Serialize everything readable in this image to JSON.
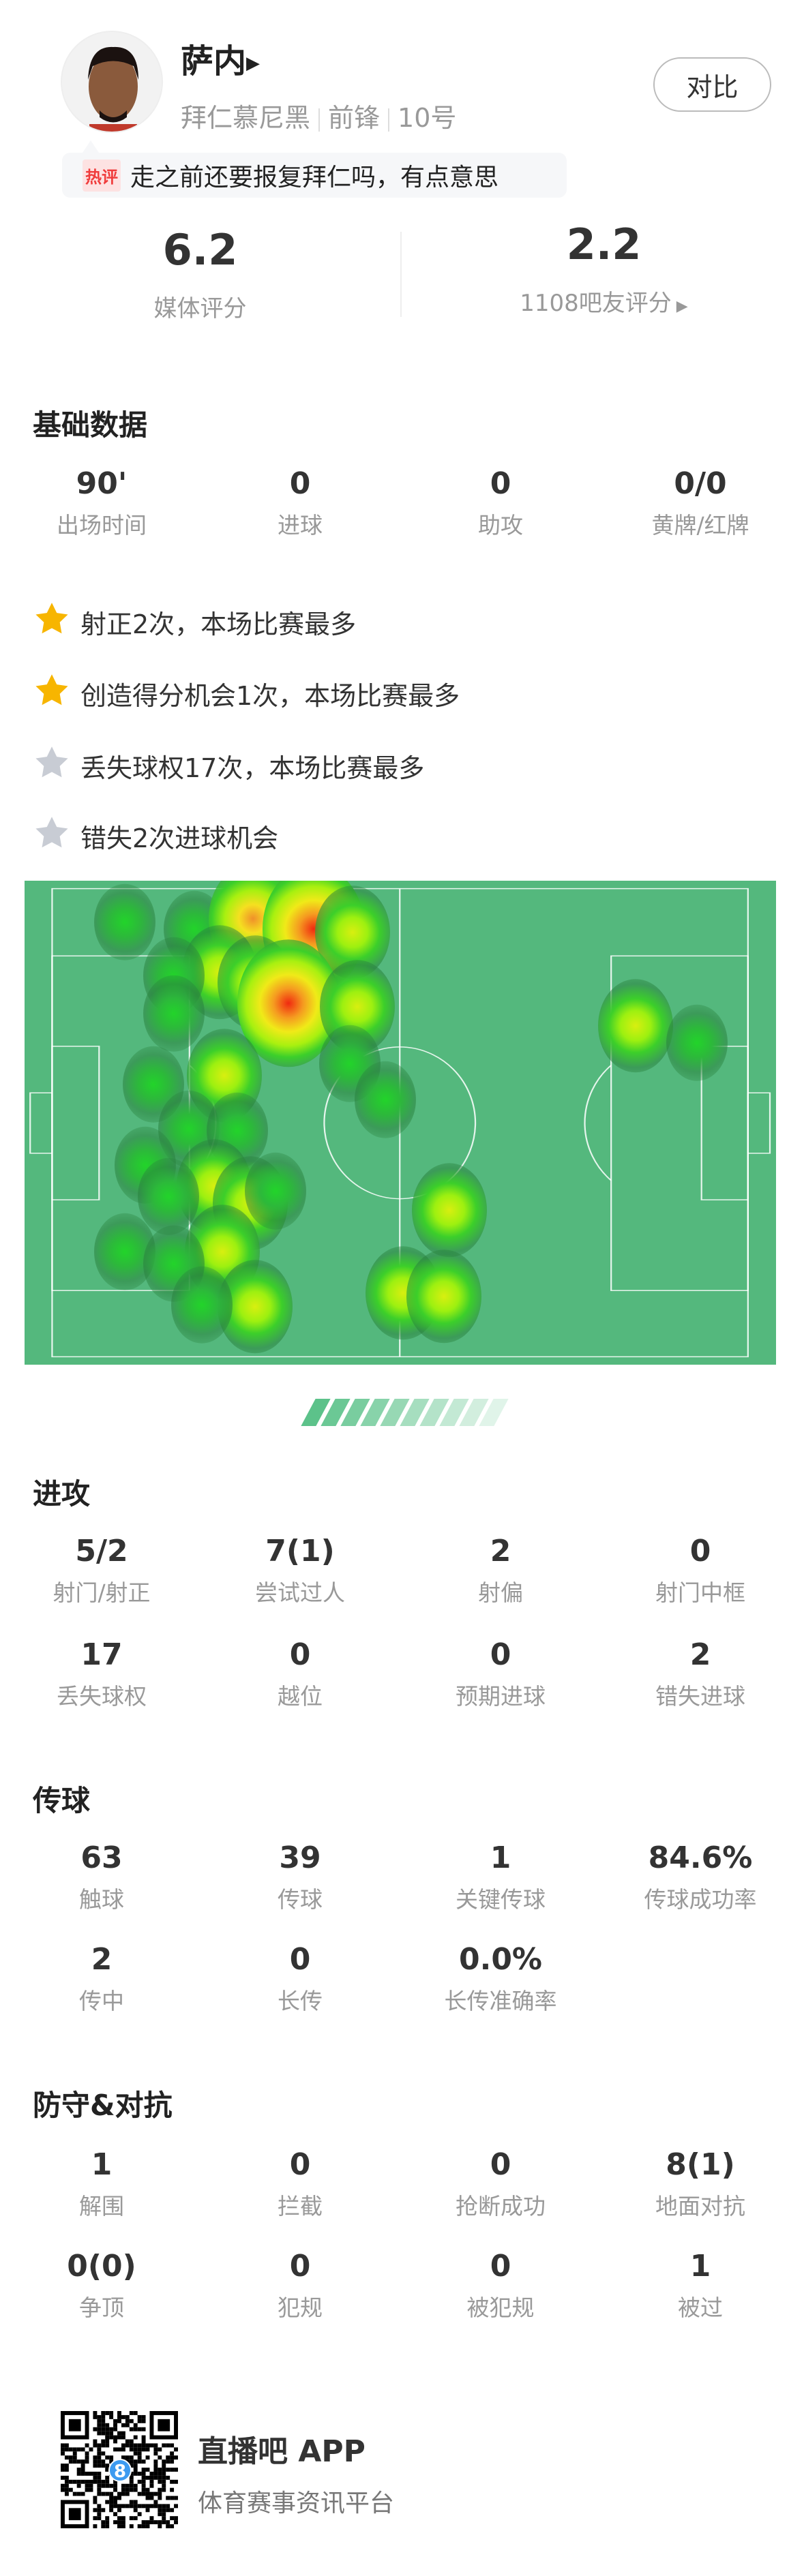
{
  "player": {
    "name": "萨内",
    "team": "拜仁慕尼黑",
    "position": "前锋",
    "number": "10号",
    "compare_label": "对比"
  },
  "comment": {
    "badge": "热评",
    "text": "走之前还要报复拜仁吗，有点意思"
  },
  "ratings": {
    "media_value": "6.2",
    "media_label": "媒体评分",
    "fan_value": "2.2",
    "fan_label": "1108吧友评分"
  },
  "basic": {
    "title": "基础数据",
    "stats": [
      {
        "value": "90'",
        "label": "出场时间"
      },
      {
        "value": "0",
        "label": "进球"
      },
      {
        "value": "0",
        "label": "助攻"
      },
      {
        "value": "0/0",
        "label": "黄牌/红牌"
      }
    ]
  },
  "highlights": [
    {
      "text": "射正2次，本场比赛最多",
      "icon": "star-gold-icon"
    },
    {
      "text": "创造得分机会1次，本场比赛最多",
      "icon": "star-gold-icon"
    },
    {
      "text": "丢失球权17次，本场比赛最多",
      "icon": "star-gray-icon"
    },
    {
      "text": "错失2次进球机会",
      "icon": "star-gray-icon"
    }
  ],
  "colors": {
    "pitch": "#54b87d",
    "star_gold": "#f7b500",
    "star_gray": "#c8ccd4",
    "accent": "#5cc28a"
  },
  "attack": {
    "title": "进攻",
    "stats": [
      {
        "value": "5/2",
        "label": "射门/射正"
      },
      {
        "value": "7(1)",
        "label": "尝试过人"
      },
      {
        "value": "2",
        "label": "射偏"
      },
      {
        "value": "0",
        "label": "射门中框"
      },
      {
        "value": "17",
        "label": "丢失球权"
      },
      {
        "value": "0",
        "label": "越位"
      },
      {
        "value": "0",
        "label": "预期进球"
      },
      {
        "value": "2",
        "label": "错失进球"
      }
    ]
  },
  "passing": {
    "title": "传球",
    "stats": [
      {
        "value": "63",
        "label": "触球"
      },
      {
        "value": "39",
        "label": "传球"
      },
      {
        "value": "1",
        "label": "关键传球"
      },
      {
        "value": "84.6%",
        "label": "传球成功率"
      },
      {
        "value": "2",
        "label": "传中"
      },
      {
        "value": "0",
        "label": "长传"
      },
      {
        "value": "0.0%",
        "label": "长传准确率"
      }
    ]
  },
  "defense": {
    "title": "防守&对抗",
    "stats": [
      {
        "value": "1",
        "label": "解围"
      },
      {
        "value": "0",
        "label": "拦截"
      },
      {
        "value": "0",
        "label": "抢断成功"
      },
      {
        "value": "8(1)",
        "label": "地面对抗"
      },
      {
        "value": "0(0)",
        "label": "争顶"
      },
      {
        "value": "0",
        "label": "犯规"
      },
      {
        "value": "0",
        "label": "被犯规"
      },
      {
        "value": "1",
        "label": "被过"
      }
    ]
  },
  "footer": {
    "app_name": "直播吧 APP",
    "tagline": "体育赛事资讯平台",
    "qr_logo": "8"
  }
}
